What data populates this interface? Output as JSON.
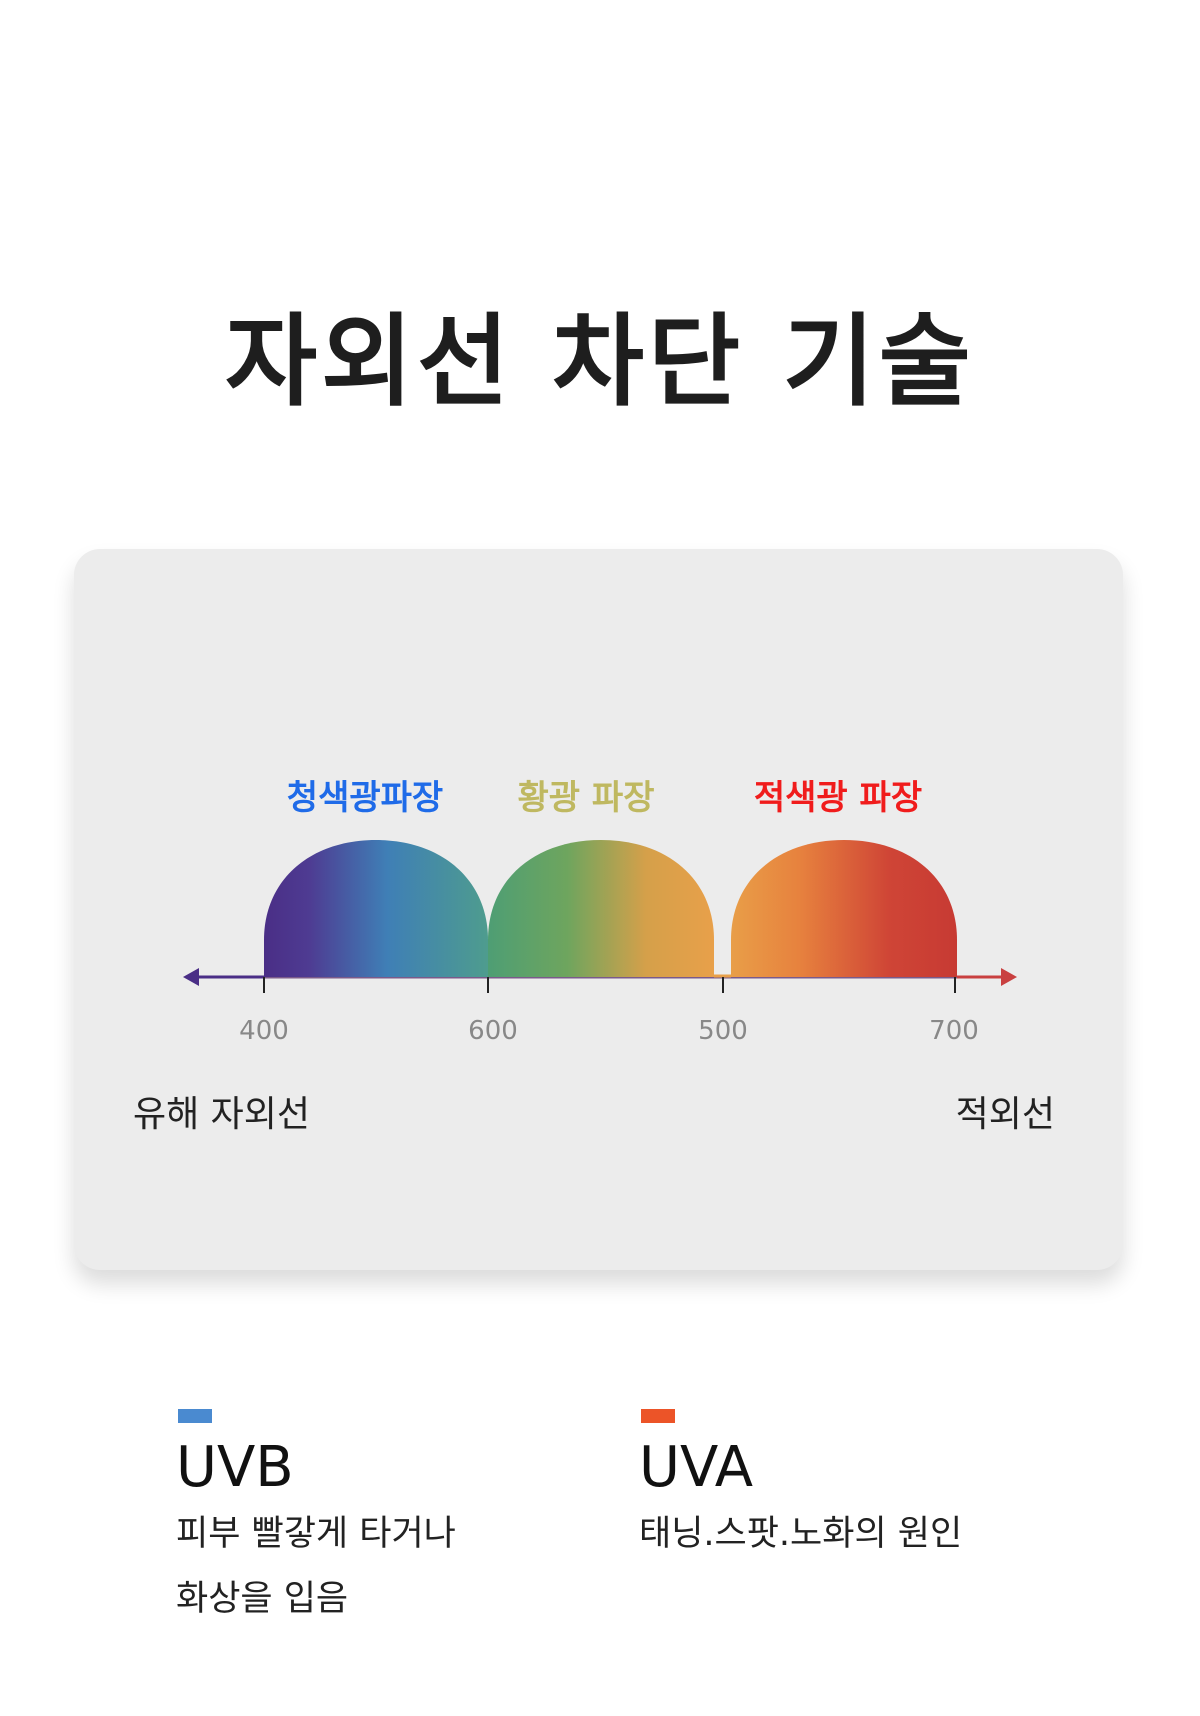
{
  "title": "자외선 차단 기술",
  "spectrum": {
    "labels": [
      {
        "text": "청색광파장",
        "color": "#1f6be8"
      },
      {
        "text": "황광 파장",
        "color": "#bfb860"
      },
      {
        "text": "적색광 파장",
        "color": "#f01c1c"
      }
    ],
    "ticks": [
      "400",
      "600",
      "500",
      "700"
    ],
    "left_label": "유해 자외선",
    "right_label": "적외선"
  },
  "legend": [
    {
      "name": "UVB",
      "color": "#4a8ad0",
      "lines": [
        "피부 빨갛게 타거나",
        "화상을 입음"
      ]
    },
    {
      "name": "UVA",
      "color": "#ec5428",
      "lines": [
        "태닝.스팟.노화의 원인"
      ]
    }
  ]
}
